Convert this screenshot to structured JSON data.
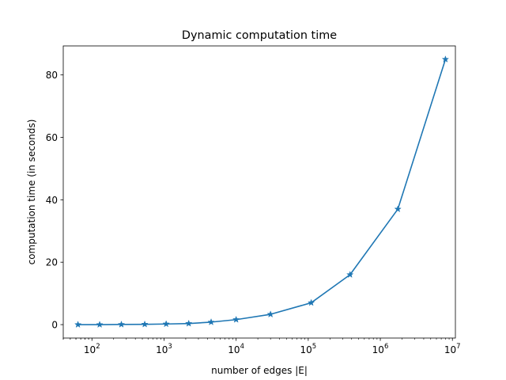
{
  "chart_data": {
    "type": "line",
    "title": "Dynamic computation time",
    "xlabel": "number of edges |E|",
    "ylabel": "computation time (in seconds)",
    "xscale": "log",
    "xlim": [
      40,
      11000000
    ],
    "ylim": [
      -4.3,
      89.3
    ],
    "grid": false,
    "legend": "none",
    "x_ticks": [
      {
        "value": 100,
        "base": "10",
        "exp": "2"
      },
      {
        "value": 1000,
        "base": "10",
        "exp": "3"
      },
      {
        "value": 10000,
        "base": "10",
        "exp": "4"
      },
      {
        "value": 100000,
        "base": "10",
        "exp": "5"
      },
      {
        "value": 1000000,
        "base": "10",
        "exp": "6"
      },
      {
        "value": 10000000,
        "base": "10",
        "exp": "7"
      }
    ],
    "y_ticks": [
      {
        "value": 0,
        "label": "0"
      },
      {
        "value": 20,
        "label": "20"
      },
      {
        "value": 40,
        "label": "40"
      },
      {
        "value": 60,
        "label": "60"
      },
      {
        "value": 80,
        "label": "80"
      }
    ],
    "series": [
      {
        "color": "#1f77b4",
        "marker": "star",
        "x": [
          64,
          128,
          256,
          540,
          1070,
          2200,
          4500,
          10000,
          30000,
          110000,
          380000,
          1750000,
          8000000
        ],
        "y": [
          0.0,
          0.0,
          0.05,
          0.1,
          0.2,
          0.35,
          0.8,
          1.6,
          3.3,
          7.0,
          16.0,
          37.0,
          85.0
        ]
      }
    ]
  }
}
